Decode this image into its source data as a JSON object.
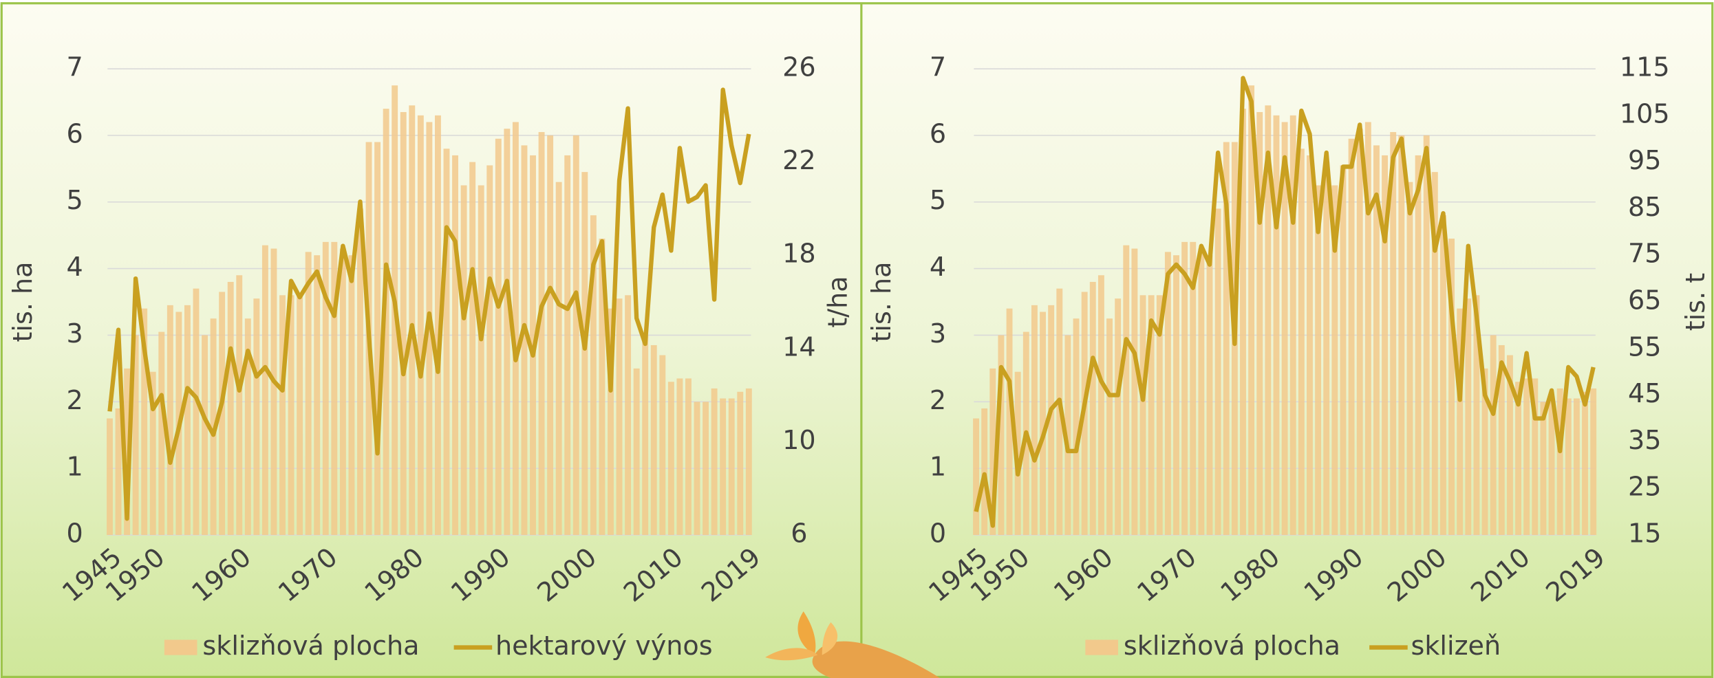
{
  "chart_data": [
    {
      "type": "combo",
      "categories": [
        "1945",
        null,
        null,
        null,
        null,
        "1950",
        null,
        null,
        null,
        null,
        null,
        null,
        null,
        null,
        null,
        "1960",
        null,
        null,
        null,
        null,
        null,
        null,
        null,
        null,
        null,
        "1970",
        null,
        null,
        null,
        null,
        null,
        null,
        null,
        null,
        null,
        "1980",
        null,
        null,
        null,
        null,
        null,
        null,
        null,
        null,
        null,
        "1990",
        null,
        null,
        null,
        null,
        null,
        null,
        null,
        null,
        null,
        "2000",
        null,
        null,
        null,
        null,
        null,
        null,
        null,
        null,
        null,
        "2010",
        null,
        null,
        null,
        null,
        null,
        null,
        null,
        null,
        "2019"
      ],
      "series": [
        {
          "name": "sklizňová plocha",
          "type": "bar",
          "color": "#f2c98c",
          "values": [
            1.75,
            1.9,
            2.5,
            3.0,
            3.4,
            2.45,
            3.05,
            3.45,
            3.35,
            3.45,
            3.7,
            3.0,
            3.25,
            3.65,
            3.8,
            3.9,
            3.25,
            3.55,
            4.35,
            4.3,
            3.6,
            3.6,
            3.6,
            4.25,
            4.2,
            4.4,
            4.4,
            4.3,
            4.2,
            4.9,
            5.9,
            5.9,
            6.4,
            6.75,
            6.35,
            6.45,
            6.3,
            6.2,
            6.3,
            5.8,
            5.7,
            5.25,
            5.6,
            5.25,
            5.55,
            5.95,
            6.1,
            6.2,
            5.85,
            5.7,
            6.05,
            6.0,
            5.3,
            5.7,
            6.0,
            5.45,
            4.8,
            4.45,
            3.4,
            3.55,
            3.6,
            2.5,
            3.0,
            2.85,
            2.7,
            2.3,
            2.35,
            2.35,
            2.0,
            2.0,
            2.2,
            2.05,
            2.05,
            2.15,
            2.2
          ]
        },
        {
          "name": "hektarový výnos",
          "type": "line",
          "axis": "y2",
          "color": "#c9a020",
          "values": [
            11.3,
            14.8,
            6.7,
            17.0,
            14.0,
            11.4,
            12.0,
            9.1,
            10.6,
            12.3,
            11.9,
            11.0,
            10.3,
            11.7,
            14.0,
            12.2,
            13.9,
            12.8,
            13.2,
            12.6,
            12.2,
            16.9,
            16.2,
            16.8,
            17.3,
            16.2,
            15.4,
            18.4,
            16.9,
            20.3,
            14.6,
            9.5,
            17.6,
            16.0,
            12.9,
            15.0,
            12.8,
            15.5,
            13.0,
            19.2,
            18.6,
            15.3,
            17.4,
            14.4,
            17.0,
            15.8,
            16.9,
            13.5,
            15.0,
            13.7,
            15.8,
            16.6,
            15.9,
            15.7,
            16.4,
            14.0,
            17.6,
            18.6,
            12.2,
            21.2,
            24.3,
            15.3,
            14.2,
            19.2,
            20.6,
            18.2,
            22.6,
            20.3,
            20.5,
            21.0,
            16.1,
            25.1,
            22.7,
            21.1,
            23.2
          ]
        }
      ],
      "ylim": [
        0,
        7
      ],
      "yticks": [
        0,
        1,
        2,
        3,
        4,
        5,
        6,
        7
      ],
      "ylabel": "tis. ha",
      "y2lim": [
        6,
        26
      ],
      "y2ticks": [
        6,
        10,
        14,
        18,
        22,
        26
      ],
      "y2label": "t/ha",
      "grid": true
    },
    {
      "type": "combo",
      "categories": [
        "1945",
        null,
        null,
        null,
        null,
        "1950",
        null,
        null,
        null,
        null,
        null,
        null,
        null,
        null,
        null,
        "1960",
        null,
        null,
        null,
        null,
        null,
        null,
        null,
        null,
        null,
        "1970",
        null,
        null,
        null,
        null,
        null,
        null,
        null,
        null,
        null,
        "1980",
        null,
        null,
        null,
        null,
        null,
        null,
        null,
        null,
        null,
        "1990",
        null,
        null,
        null,
        null,
        null,
        null,
        null,
        null,
        null,
        "2000",
        null,
        null,
        null,
        null,
        null,
        null,
        null,
        null,
        null,
        "2010",
        null,
        null,
        null,
        null,
        null,
        null,
        null,
        null,
        "2019"
      ],
      "series": [
        {
          "name": "sklizňová plocha",
          "type": "bar",
          "color": "#f2c98c",
          "values": [
            1.75,
            1.9,
            2.5,
            3.0,
            3.4,
            2.45,
            3.05,
            3.45,
            3.35,
            3.45,
            3.7,
            3.0,
            3.25,
            3.65,
            3.8,
            3.9,
            3.25,
            3.55,
            4.35,
            4.3,
            3.6,
            3.6,
            3.6,
            4.25,
            4.2,
            4.4,
            4.4,
            4.3,
            4.2,
            4.9,
            5.9,
            5.9,
            6.4,
            6.75,
            6.35,
            6.45,
            6.3,
            6.2,
            6.3,
            5.8,
            5.7,
            5.25,
            5.6,
            5.25,
            5.55,
            5.95,
            6.1,
            6.2,
            5.85,
            5.7,
            6.05,
            6.0,
            5.3,
            5.7,
            6.0,
            5.45,
            4.8,
            4.45,
            3.4,
            3.55,
            3.6,
            2.5,
            3.0,
            2.85,
            2.7,
            2.3,
            2.35,
            2.35,
            2.0,
            2.0,
            2.2,
            2.05,
            2.05,
            2.15,
            2.2
          ]
        },
        {
          "name": "sklizeň",
          "type": "line",
          "axis": "y2",
          "color": "#c9a020",
          "values": [
            20,
            28,
            17,
            51,
            48,
            28,
            37,
            31,
            36,
            42,
            44,
            33,
            33,
            43,
            53,
            48,
            45,
            45,
            57,
            54,
            44,
            61,
            58,
            71,
            73,
            71,
            68,
            77,
            73,
            97,
            86,
            56,
            113,
            108,
            82,
            97,
            81,
            96,
            82,
            106,
            101,
            80,
            97,
            76,
            94,
            94,
            103,
            84,
            88,
            78,
            96,
            100,
            84,
            89,
            98,
            76,
            84,
            63,
            44,
            77,
            62,
            45,
            41,
            52,
            48,
            43,
            54,
            40,
            40,
            46,
            33,
            51,
            49,
            43,
            51
          ]
        }
      ],
      "ylim": [
        0,
        7
      ],
      "yticks": [
        0,
        1,
        2,
        3,
        4,
        5,
        6,
        7
      ],
      "ylabel": "tis. ha",
      "y2lim": [
        15,
        115
      ],
      "y2ticks": [
        15,
        25,
        35,
        45,
        55,
        65,
        75,
        85,
        95,
        105,
        115
      ],
      "y2label": "tis. t",
      "grid": true
    }
  ]
}
